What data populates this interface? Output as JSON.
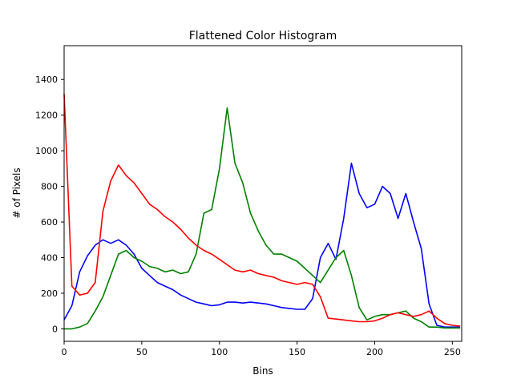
{
  "chart_data": {
    "type": "line",
    "title": "Flattened Color Histogram",
    "xlabel": "Bins",
    "ylabel": "# of Pixels",
    "xlim": [
      0,
      256
    ],
    "ylim": [
      -70,
      1590
    ],
    "grid": false,
    "x": [
      0,
      5,
      10,
      15,
      20,
      25,
      30,
      35,
      40,
      45,
      50,
      55,
      60,
      65,
      70,
      75,
      80,
      85,
      90,
      95,
      100,
      105,
      110,
      115,
      120,
      125,
      130,
      135,
      140,
      145,
      150,
      155,
      160,
      165,
      170,
      175,
      180,
      185,
      190,
      195,
      200,
      205,
      210,
      215,
      220,
      225,
      230,
      235,
      240,
      245,
      250,
      255
    ],
    "xticks": [
      0,
      50,
      100,
      150,
      200,
      250
    ],
    "yticks": [
      0,
      200,
      400,
      600,
      800,
      1000,
      1200,
      1400
    ],
    "series": [
      {
        "color": "#0000ff",
        "values": [
          50,
          130,
          320,
          410,
          470,
          500,
          480,
          500,
          470,
          420,
          340,
          300,
          260,
          240,
          220,
          190,
          170,
          150,
          140,
          130,
          135,
          150,
          150,
          145,
          150,
          145,
          140,
          130,
          120,
          115,
          110,
          110,
          170,
          400,
          480,
          390,
          620,
          930,
          760,
          680,
          700,
          800,
          760,
          620,
          760,
          600,
          450,
          140,
          20,
          10,
          10,
          10
        ]
      },
      {
        "color": "#008000",
        "values": [
          0,
          0,
          10,
          30,
          100,
          180,
          300,
          420,
          440,
          400,
          380,
          350,
          340,
          320,
          330,
          310,
          320,
          420,
          650,
          670,
          900,
          1240,
          930,
          820,
          650,
          550,
          470,
          420,
          420,
          400,
          380,
          340,
          300,
          260,
          330,
          400,
          440,
          300,
          120,
          50,
          70,
          80,
          80,
          90,
          100,
          60,
          40,
          10,
          10,
          5,
          5,
          5
        ]
      },
      {
        "color": "#ff0000",
        "values": [
          1320,
          240,
          190,
          200,
          260,
          660,
          830,
          920,
          860,
          820,
          760,
          700,
          670,
          630,
          600,
          560,
          510,
          470,
          440,
          420,
          390,
          360,
          330,
          320,
          330,
          310,
          300,
          290,
          270,
          260,
          250,
          260,
          250,
          180,
          60,
          55,
          50,
          45,
          40,
          40,
          45,
          60,
          80,
          90,
          80,
          70,
          80,
          100,
          60,
          30,
          20,
          15
        ]
      }
    ]
  }
}
